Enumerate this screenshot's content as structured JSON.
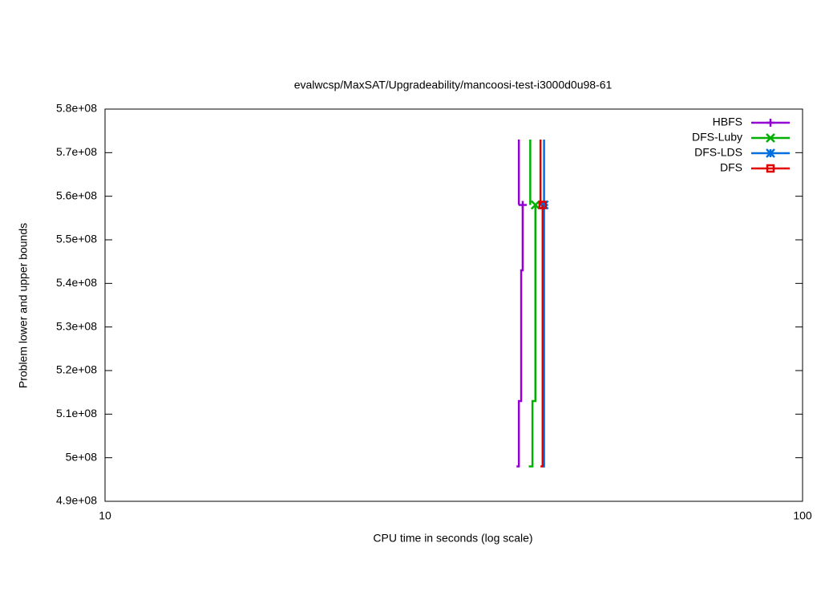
{
  "chart_data": {
    "type": "step",
    "title": "evalwcsp/MaxSAT/Upgradeability/mancoosi-test-i3000d0u98-61",
    "xlabel": "CPU time in seconds (log scale)",
    "ylabel": "Problem lower and upper bounds",
    "xscale": "log",
    "xlim": [
      10,
      100
    ],
    "xticks": [
      10,
      100
    ],
    "ylim": [
      490000000,
      580000000
    ],
    "yticks": [
      {
        "value": 490000000,
        "label": "4.9e+08"
      },
      {
        "value": 500000000,
        "label": "5e+08"
      },
      {
        "value": 510000000,
        "label": "5.1e+08"
      },
      {
        "value": 520000000,
        "label": "5.2e+08"
      },
      {
        "value": 530000000,
        "label": "5.3e+08"
      },
      {
        "value": 540000000,
        "label": "5.4e+08"
      },
      {
        "value": 550000000,
        "label": "5.5e+08"
      },
      {
        "value": 560000000,
        "label": "5.6e+08"
      },
      {
        "value": 570000000,
        "label": "5.7e+08"
      },
      {
        "value": 580000000,
        "label": "5.8e+08"
      }
    ],
    "legend": "top-right",
    "series": [
      {
        "name": "HBFS",
        "color": "#9400d3",
        "marker": "plus",
        "lower": {
          "x": [
            38.9,
            39.2,
            39.5,
            39.7
          ],
          "values": [
            498000000,
            513000000,
            543000000,
            558000000
          ]
        },
        "upper": {
          "x": [
            39.2,
            39.2
          ],
          "values": [
            573000000,
            558000000
          ]
        }
      },
      {
        "name": "DFS-Luby",
        "color": "#00b000",
        "marker": "cross",
        "lower": {
          "x": [
            40.5,
            41.0,
            41.4
          ],
          "values": [
            498000000,
            513000000,
            558000000
          ]
        },
        "upper": {
          "x": [
            40.7,
            40.7
          ],
          "values": [
            573000000,
            558000000
          ]
        }
      },
      {
        "name": "DFS-LDS",
        "color": "#0070e0",
        "marker": "star",
        "lower": {
          "x": [
            42.4,
            42.6
          ],
          "values": [
            498000000,
            558000000
          ]
        },
        "upper": {
          "x": [
            42.6,
            42.6
          ],
          "values": [
            573000000,
            558000000
          ]
        }
      },
      {
        "name": "DFS",
        "color": "#e00000",
        "marker": "square",
        "lower": {
          "x": [
            42.1,
            42.4
          ],
          "values": [
            498000000,
            558000000
          ]
        },
        "upper": {
          "x": [
            42.1,
            42.1
          ],
          "values": [
            573000000,
            558000000
          ]
        }
      }
    ]
  }
}
